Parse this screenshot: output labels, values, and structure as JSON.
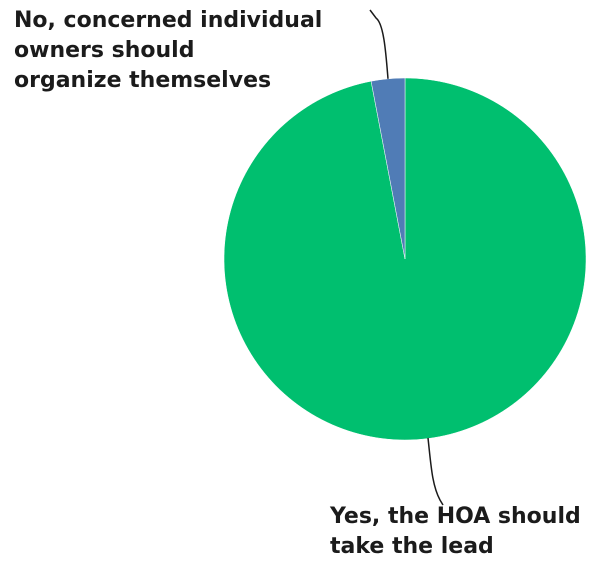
{
  "chart_data": {
    "type": "pie",
    "slices": [
      {
        "label_lines": [
          "Yes, the HOA should",
          "take the lead"
        ],
        "value": 97,
        "color": "#00bf6f"
      },
      {
        "label_lines": [
          "No, concerned individual",
          "owners should",
          "organize themselves"
        ],
        "value": 3,
        "color": "#507cb6"
      }
    ],
    "start": "12 o'clock, clockwise",
    "legend": "none"
  }
}
